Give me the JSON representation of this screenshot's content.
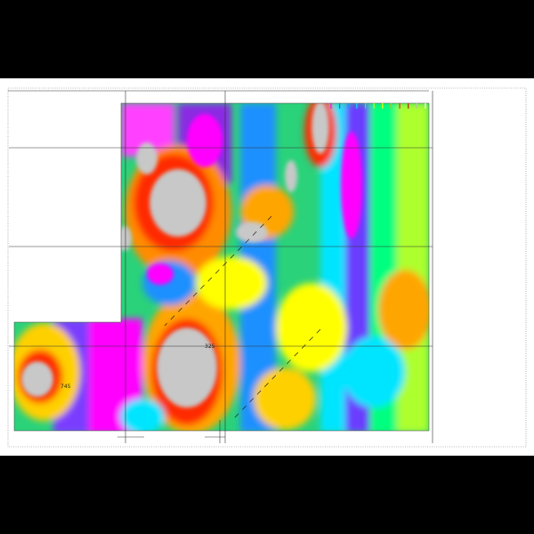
{
  "map": {
    "type": "magnetic-anomaly-survey",
    "colors": [
      "#ff00ff",
      "#8a2be2",
      "#1e90ff",
      "#00e5ff",
      "#00ff7f",
      "#adff2f",
      "#ffff00",
      "#ffa500",
      "#ff2a00",
      "#c81414",
      "#bdbdbd",
      "#ffffff"
    ],
    "annotations": [
      {
        "id": "station-1",
        "text": "325"
      },
      {
        "id": "station-2",
        "text": "745"
      }
    ],
    "legend_tick_count": 12
  }
}
